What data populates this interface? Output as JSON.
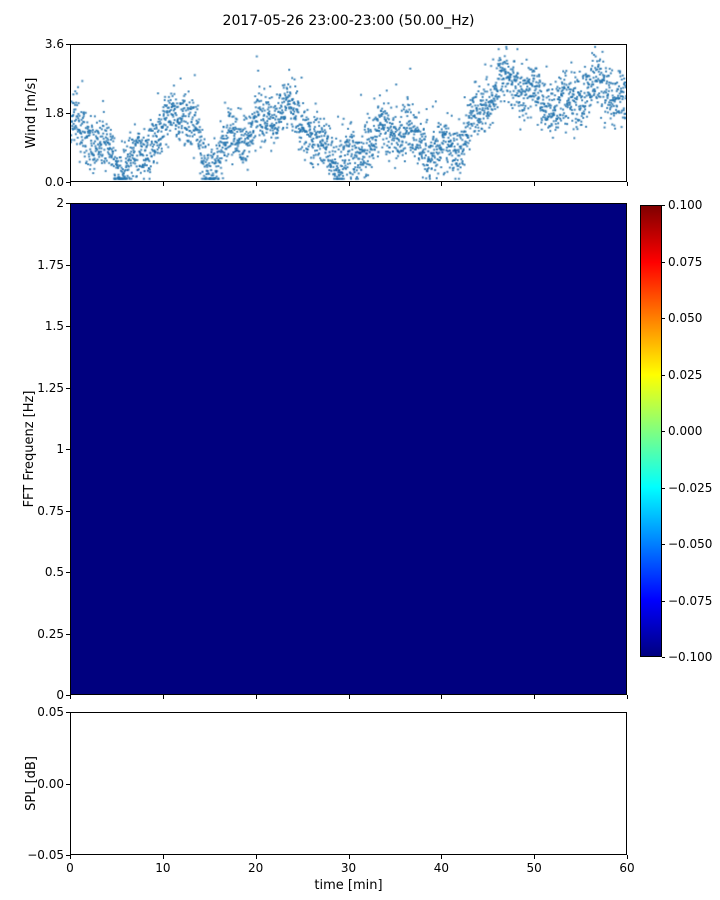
{
  "figure": {
    "title": "2017-05-26 23:00-23:00 (50.00_Hz)",
    "background": "#ffffff"
  },
  "chart_data": [
    {
      "type": "scatter",
      "name": "wind-speed",
      "ylabel": "Wind [m/s]",
      "xlim": [
        0,
        60
      ],
      "ylim": [
        0.0,
        3.6
      ],
      "ytick_labels": [
        "3.6",
        "1.8",
        "0.0"
      ],
      "ytick_values": [
        3.6,
        1.8,
        0.0
      ],
      "xtick_values": [
        0,
        10,
        20,
        30,
        40,
        50,
        60
      ],
      "marker_color": "#2273ae",
      "marker_size_px": 2,
      "n_points": 3000,
      "seed": 20170526,
      "summary": "Dense 1-Hz wind-speed time series over 60 minutes; values mostly 0.5-2.5 m/s around a ~1.2 m/s mean, a lull dropping to ~0.1-0.4 m/s near minute 15, and sustained stronger wind of ~1.5-3.5 m/s from minute 46 to 60; sporadic gusts up to ~3.5 m/s throughout."
    },
    {
      "type": "heatmap",
      "name": "spectrogram",
      "ylabel": "FFT Frequenz [Hz]",
      "xlim": [
        0,
        60
      ],
      "ylim": [
        0,
        2
      ],
      "ytick_labels": [
        "2",
        "1.75",
        "1.5",
        "1.25",
        "1",
        "0.75",
        "0.5",
        "0.25",
        "0"
      ],
      "ytick_values": [
        2,
        1.75,
        1.5,
        1.25,
        1,
        0.75,
        0.5,
        0.25,
        0
      ],
      "uniform_value": -0.1,
      "fill_color": "#00007f",
      "colormap": "jet",
      "colorbar": {
        "vmin": -0.1,
        "vmax": 0.1,
        "tick_labels": [
          "0.100",
          "0.075",
          "0.050",
          "0.025",
          "0.000",
          "−0.025",
          "−0.050",
          "−0.075",
          "−0.100"
        ],
        "tick_values": [
          0.1,
          0.075,
          0.05,
          0.025,
          0.0,
          -0.025,
          -0.05,
          -0.075,
          -0.1
        ],
        "gradient_stops_top_to_bottom": [
          "#800000",
          "#ff0000",
          "#ff8000",
          "#ffff00",
          "#80ff80",
          "#00ffff",
          "#0080ff",
          "#0000ff",
          "#000080"
        ]
      },
      "summary": "Spectrogram panel rendered as a uniform dark-blue field (constant value -0.100 across all times 0-60 min and frequencies 0-2 Hz)."
    },
    {
      "type": "line",
      "name": "spl",
      "ylabel": "SPL [dB]",
      "xlabel": "time [min]",
      "xlim": [
        0,
        60
      ],
      "ylim": [
        -0.05,
        0.05
      ],
      "ytick_labels": [
        "0.05",
        "0.00",
        "−0.05"
      ],
      "ytick_values": [
        0.05,
        0.0,
        -0.05
      ],
      "xtick_labels": [
        "0",
        "10",
        "20",
        "30",
        "40",
        "50",
        "60"
      ],
      "xtick_values": [
        0,
        10,
        20,
        30,
        40,
        50,
        60
      ],
      "values": [],
      "summary": "Empty axes (no data plotted)."
    }
  ]
}
